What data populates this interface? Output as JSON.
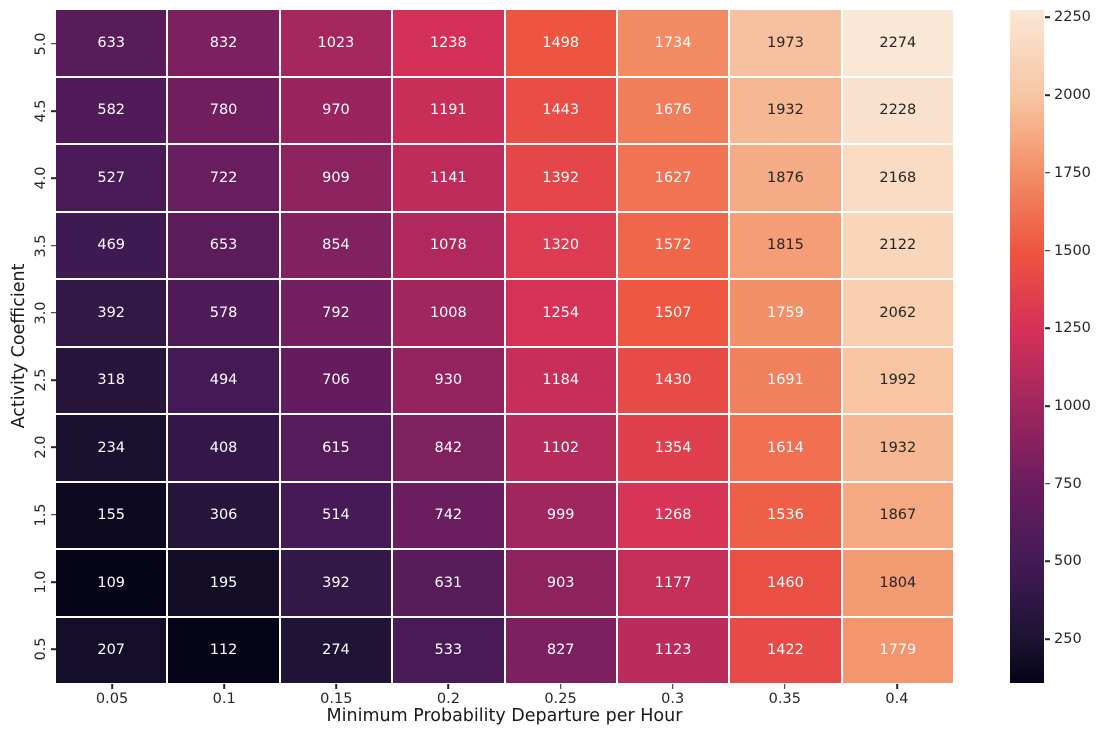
{
  "figure": {
    "background": "#ffffff"
  },
  "chart_data": {
    "type": "heatmap",
    "title": "",
    "xlabel": "Minimum Probability Departure per Hour",
    "ylabel": "Activity Coefficient",
    "x_tick_labels": [
      "0.05",
      "0.1",
      "0.15",
      "0.2",
      "0.25",
      "0.3",
      "0.35",
      "0.4"
    ],
    "y_tick_labels": [
      "5.0",
      "4.5",
      "4.0",
      "3.5",
      "3.0",
      "2.5",
      "2.0",
      "1.5",
      "1.0",
      "0.5"
    ],
    "values": [
      [
        633,
        832,
        1023,
        1238,
        1498,
        1734,
        1973,
        2274
      ],
      [
        582,
        780,
        970,
        1191,
        1443,
        1676,
        1932,
        2228
      ],
      [
        527,
        722,
        909,
        1141,
        1392,
        1627,
        1876,
        2168
      ],
      [
        469,
        653,
        854,
        1078,
        1320,
        1572,
        1815,
        2122
      ],
      [
        392,
        578,
        792,
        1008,
        1254,
        1507,
        1759,
        2062
      ],
      [
        318,
        494,
        706,
        930,
        1184,
        1430,
        1691,
        1992
      ],
      [
        234,
        408,
        615,
        842,
        1102,
        1354,
        1614,
        1932
      ],
      [
        155,
        306,
        514,
        742,
        999,
        1268,
        1536,
        1867
      ],
      [
        109,
        195,
        392,
        631,
        903,
        1177,
        1460,
        1804
      ],
      [
        207,
        112,
        274,
        533,
        827,
        1123,
        1422,
        1779
      ]
    ],
    "vmin": 109,
    "vmax": 2274,
    "colorbar_ticks": [
      "250",
      "500",
      "750",
      "1000",
      "1250",
      "1500",
      "1750",
      "2000",
      "2250"
    ],
    "colormap": {
      "name": "rocket",
      "stops": [
        {
          "t": 0.0,
          "color": "#050418"
        },
        {
          "t": 0.065,
          "color": "#1C1332"
        },
        {
          "t": 0.181,
          "color": "#441A57"
        },
        {
          "t": 0.296,
          "color": "#6B1D5F"
        },
        {
          "t": 0.412,
          "color": "#A1265E"
        },
        {
          "t": 0.527,
          "color": "#D63158"
        },
        {
          "t": 0.642,
          "color": "#EE5540"
        },
        {
          "t": 0.758,
          "color": "#F28F66"
        },
        {
          "t": 0.873,
          "color": "#F8C6A4"
        },
        {
          "t": 1.0,
          "color": "#FAE7D6"
        }
      ]
    },
    "annot": {
      "light_text_color": "#ffffff",
      "dark_text_color": "#262626",
      "dark_text_min_value": 1790
    },
    "grid_line_color": "#ffffff",
    "legend_position": "right-colorbar"
  }
}
